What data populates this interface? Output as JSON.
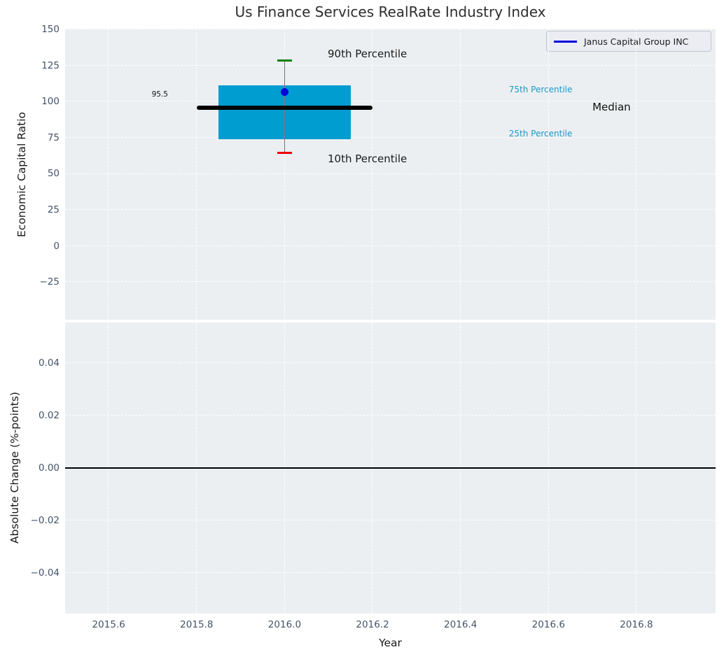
{
  "title": "Us Finance Services RealRate Industry Index",
  "colors": {
    "axes_background": "#eceff1",
    "grid": "#ffffff",
    "tick_label": "#435369",
    "axis_label": "#1a1a1a",
    "title": "#2d2d2d",
    "box_fill": "#009dd1",
    "median_line": "#000000",
    "whisker": "#777777",
    "cap_90th": "#007f00",
    "cap_10th": "#ee0000",
    "company_marker": "#0000dd",
    "percentile_label": "#1f97c8",
    "zero_line": "#000000",
    "legend_background": "#ecedf3",
    "legend_border": "#c3c5cf"
  },
  "chart_data": [
    {
      "type": "box",
      "title": "Us Finance Services RealRate Industry Index",
      "ylabel": "Economic Capital Ratio",
      "xlim": [
        2015.501,
        2016.98
      ],
      "ylim": [
        -51.1,
        150.5
      ],
      "grid": true,
      "legend": {
        "label": "Janus Capital Group INC",
        "position": "upper right",
        "line_color": "#0000dd"
      },
      "xticks": [
        2015.6,
        2015.8,
        2016.0,
        2016.2,
        2016.4,
        2016.6,
        2016.8
      ],
      "xtick_labels": [
        "2015.6",
        "2015.8",
        "2016.0",
        "2016.2",
        "2016.4",
        "2016.6",
        "2016.8"
      ],
      "show_xtick_labels": false,
      "yticks": [
        150,
        125,
        100,
        75,
        50,
        25,
        0,
        -25
      ],
      "ytick_labels": [
        "150",
        "125",
        "100",
        "75",
        "50",
        "25",
        "0",
        "−25"
      ],
      "box": {
        "x": 2016.0,
        "p10": 64.5,
        "p25": 74,
        "median": 95.5,
        "p75": 111.3,
        "p90": 128.5,
        "company_name": "Janus Capital Group INC",
        "company_value": 106.5,
        "box_half_width": 0.15,
        "median_half_width": 0.2,
        "cap_half_width": 0.017,
        "median_value_label": "95.5"
      },
      "annotations": [
        {
          "text": "90th Percentile",
          "x": 2016.098,
          "y": 133.0,
          "align": "left",
          "size": 15,
          "color": "#1a1a1a"
        },
        {
          "text": "10th Percentile",
          "x": 2016.098,
          "y": 60.5,
          "align": "left",
          "size": 15,
          "color": "#1a1a1a"
        },
        {
          "text": "75th Percentile",
          "x": 2016.51,
          "y": 108.3,
          "align": "left",
          "size": 12,
          "color": "#1f97c8"
        },
        {
          "text": "25th Percentile",
          "x": 2016.51,
          "y": 77.9,
          "align": "left",
          "size": 12,
          "color": "#1f97c8"
        },
        {
          "text": "Median",
          "x": 2016.7,
          "y": 96.3,
          "align": "left",
          "size": 15,
          "color": "#111111"
        },
        {
          "text": "95.5",
          "x": 2015.735,
          "y": 105.0,
          "align": "right",
          "size": 10.5,
          "color": "#111111"
        }
      ]
    },
    {
      "type": "line",
      "ylabel": "Absolute Change (%-points)",
      "xlabel": "Year",
      "xlim": [
        2015.501,
        2016.98
      ],
      "ylim": [
        -0.0555,
        0.0555
      ],
      "grid": true,
      "xticks": [
        2015.6,
        2015.8,
        2016.0,
        2016.2,
        2016.4,
        2016.6,
        2016.8
      ],
      "xtick_labels": [
        "2015.6",
        "2015.8",
        "2016.0",
        "2016.2",
        "2016.4",
        "2016.6",
        "2016.8"
      ],
      "show_xtick_labels": true,
      "yticks": [
        0.04,
        0.02,
        0.0,
        -0.02,
        -0.04
      ],
      "ytick_labels": [
        "0.04",
        "0.02",
        "0.00",
        "−0.02",
        "−0.04"
      ],
      "zero_line": 0.0,
      "series": []
    }
  ]
}
